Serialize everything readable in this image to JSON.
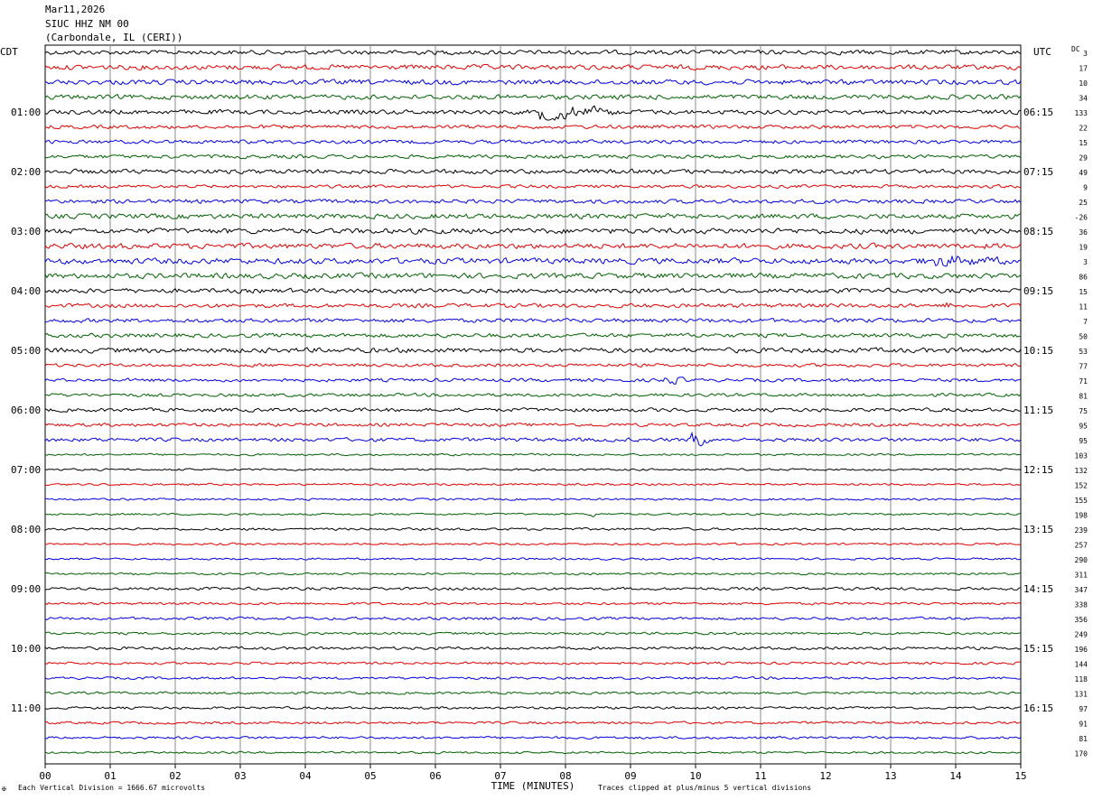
{
  "header": {
    "date": "Mar11,2026",
    "station": "SIUC HHZ NM 00",
    "location": "(Carbondale, IL (CERI))"
  },
  "labels": {
    "left_tz": "CDT",
    "right_tz": "UTC",
    "dc": "DC",
    "footer_scale": "Each Vertical Division = 1666.67 microvolts",
    "footer_clip": "Traces clipped at plus/minus 5 vertical divisions",
    "footer_mark": "✠"
  },
  "colors": {
    "trace_cycle": [
      "#000000",
      "#e00000",
      "#0000e0",
      "#006000"
    ],
    "grid": "#888888"
  },
  "chart_data": {
    "type": "line",
    "title": "",
    "xlabel": "TIME (MINUTES)",
    "ylabel": "",
    "xlim": [
      0,
      15
    ],
    "x_ticks": [
      "00",
      "01",
      "02",
      "03",
      "04",
      "05",
      "06",
      "07",
      "08",
      "09",
      "10",
      "11",
      "12",
      "13",
      "14",
      "15"
    ],
    "trace_count": 48,
    "trace_interval_minutes": 15,
    "left_hour_labels": [
      {
        "trace": 4,
        "label": "01:00"
      },
      {
        "trace": 8,
        "label": "02:00"
      },
      {
        "trace": 12,
        "label": "03:00"
      },
      {
        "trace": 16,
        "label": "04:00"
      },
      {
        "trace": 20,
        "label": "05:00"
      },
      {
        "trace": 24,
        "label": "06:00"
      },
      {
        "trace": 28,
        "label": "07:00"
      },
      {
        "trace": 32,
        "label": "08:00"
      },
      {
        "trace": 36,
        "label": "09:00"
      },
      {
        "trace": 40,
        "label": "10:00"
      },
      {
        "trace": 44,
        "label": "11:00"
      }
    ],
    "right_hour_labels": [
      {
        "trace": 4,
        "label": "06:15"
      },
      {
        "trace": 8,
        "label": "07:15"
      },
      {
        "trace": 12,
        "label": "08:15"
      },
      {
        "trace": 16,
        "label": "09:15"
      },
      {
        "trace": 20,
        "label": "10:15"
      },
      {
        "trace": 24,
        "label": "11:15"
      },
      {
        "trace": 28,
        "label": "12:15"
      },
      {
        "trace": 32,
        "label": "13:15"
      },
      {
        "trace": 36,
        "label": "14:15"
      },
      {
        "trace": 40,
        "label": "15:15"
      },
      {
        "trace": 44,
        "label": "16:15"
      }
    ],
    "dc_offsets": [
      "3",
      "17",
      "10",
      "34",
      "133",
      "22",
      "15",
      "29",
      "49",
      "9",
      "25",
      "-26",
      "36",
      "19",
      "3",
      "86",
      "15",
      "11",
      "7",
      "50",
      "53",
      "77",
      "71",
      "81",
      "75",
      "95",
      "95",
      "103",
      "132",
      "152",
      "155",
      "198",
      "239",
      "257",
      "290",
      "311",
      "347",
      "338",
      "356",
      "249",
      "196",
      "144",
      "118",
      "131",
      "97",
      "91",
      "81",
      "170"
    ],
    "trace_noise": [
      2.2,
      2.4,
      2.4,
      2.3,
      2.2,
      1.8,
      1.8,
      1.8,
      2.2,
      1.6,
      2.0,
      2.4,
      2.6,
      2.6,
      2.8,
      2.6,
      2.2,
      2.0,
      2.0,
      2.0,
      2.4,
      1.6,
      1.6,
      1.6,
      1.8,
      1.6,
      1.8,
      1.0,
      1.0,
      1.0,
      1.0,
      1.0,
      1.2,
      1.0,
      1.0,
      1.0,
      1.4,
      1.2,
      1.4,
      1.2,
      1.4,
      1.2,
      1.2,
      1.2,
      1.2,
      1.2,
      1.2,
      1.0
    ],
    "events": [
      {
        "trace": 4,
        "minute": 7.6,
        "amplitude": 6,
        "duration_minutes": 1.2
      },
      {
        "trace": 14,
        "minute": 13.5,
        "amplitude": 4,
        "duration_minutes": 1.5
      },
      {
        "trace": 22,
        "minute": 9.5,
        "amplitude": 4,
        "duration_minutes": 0.4
      },
      {
        "trace": 26,
        "minute": 9.9,
        "amplitude": 8,
        "duration_minutes": 0.3
      },
      {
        "trace": 31,
        "minute": 8.4,
        "amplitude": 3,
        "duration_minutes": 0.1
      },
      {
        "trace": 17,
        "minute": 13.85,
        "amplitude": 5,
        "duration_minutes": 0.1
      }
    ]
  }
}
